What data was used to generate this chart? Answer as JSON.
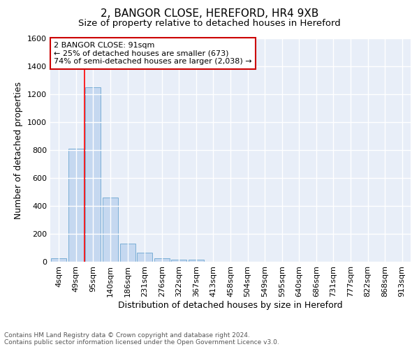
{
  "title1": "2, BANGOR CLOSE, HEREFORD, HR4 9XB",
  "title2": "Size of property relative to detached houses in Hereford",
  "xlabel": "Distribution of detached houses by size in Hereford",
  "ylabel": "Number of detached properties",
  "bar_labels": [
    "4sqm",
    "49sqm",
    "95sqm",
    "140sqm",
    "186sqm",
    "231sqm",
    "276sqm",
    "322sqm",
    "367sqm",
    "413sqm",
    "458sqm",
    "504sqm",
    "549sqm",
    "595sqm",
    "640sqm",
    "686sqm",
    "731sqm",
    "777sqm",
    "822sqm",
    "868sqm",
    "913sqm"
  ],
  "bar_heights": [
    25,
    810,
    1250,
    460,
    130,
    65,
    25,
    15,
    15,
    0,
    0,
    0,
    0,
    0,
    0,
    0,
    0,
    0,
    0,
    0,
    0
  ],
  "bar_color": "#c5d8f0",
  "bar_edge_color": "#7aaed6",
  "red_line_index": 1.5,
  "annotation_text": "2 BANGOR CLOSE: 91sqm\n← 25% of detached houses are smaller (673)\n74% of semi-detached houses are larger (2,038) →",
  "annotation_box_color": "#ffffff",
  "annotation_box_edge": "#cc0000",
  "ylim": [
    0,
    1600
  ],
  "yticks": [
    0,
    200,
    400,
    600,
    800,
    1000,
    1200,
    1400,
    1600
  ],
  "footer_text": "Contains HM Land Registry data © Crown copyright and database right 2024.\nContains public sector information licensed under the Open Government Licence v3.0.",
  "background_color": "#e8eef8",
  "grid_color": "#ffffff",
  "title1_fontsize": 11,
  "title2_fontsize": 9.5,
  "xlabel_fontsize": 9,
  "ylabel_fontsize": 9,
  "tick_fontsize": 8,
  "annotation_fontsize": 8,
  "footer_fontsize": 6.5
}
